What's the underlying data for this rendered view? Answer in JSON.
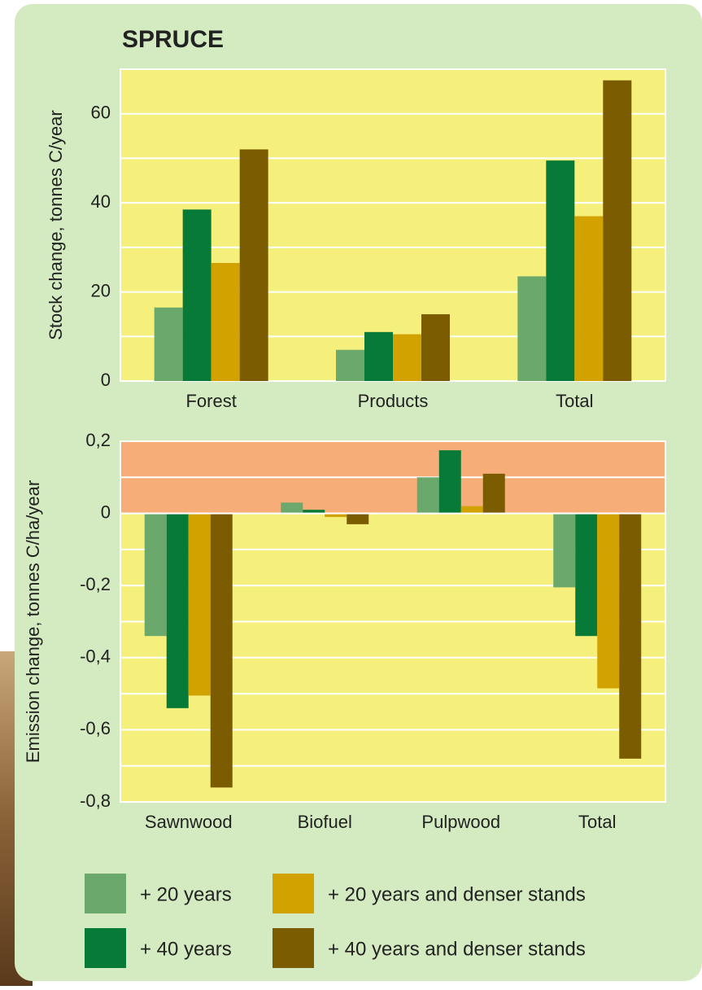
{
  "chart_data": [
    {
      "type": "bar",
      "title": "SPRUCE",
      "y_label": "Stock change, tonnes C/year",
      "categories": [
        "Forest",
        "Products",
        "Total"
      ],
      "series": [
        {
          "name": "+ 20 years",
          "color": "#6aa86c",
          "values": [
            16.5,
            7,
            23.5
          ]
        },
        {
          "name": "+ 40 years",
          "color": "#077a38",
          "values": [
            38.5,
            11,
            49.5
          ]
        },
        {
          "name": "+ 20 years and denser stands",
          "color": "#d2a200",
          "values": [
            26.5,
            10.5,
            37
          ]
        },
        {
          "name": "+ 40 years and denser stands",
          "color": "#7b5c00",
          "values": [
            52,
            15,
            67.5
          ]
        }
      ],
      "ylim": [
        0,
        70
      ],
      "yticks": [
        0,
        20,
        40,
        60
      ],
      "minor_yticks": [
        10,
        30,
        50
      ],
      "grid": true,
      "plot_color": "#f5ef7c"
    },
    {
      "type": "bar",
      "y_label": "Emission change, tonnes C/ha/year",
      "categories": [
        "Sawnwood",
        "Biofuel",
        "Pulpwood",
        "Total"
      ],
      "series": [
        {
          "color": "#6aa86c",
          "values": [
            -0.34,
            0.03,
            0.1,
            -0.205
          ]
        },
        {
          "color": "#077a38",
          "values": [
            -0.54,
            0.01,
            0.175,
            -0.34
          ]
        },
        {
          "color": "#d2a200",
          "values": [
            -0.505,
            -0.01,
            0.02,
            -0.485
          ]
        },
        {
          "color": "#7b5c00",
          "values": [
            -0.76,
            -0.03,
            0.11,
            -0.68
          ]
        }
      ],
      "ylim": [
        -0.8,
        0.2
      ],
      "yticks": [
        {
          "value": 0.2,
          "label": "0,2"
        },
        0,
        {
          "value": -0.2,
          "label": "-0,2"
        },
        {
          "value": -0.4,
          "label": "-0,4"
        },
        {
          "value": -0.6,
          "label": "-0,6"
        },
        {
          "value": -0.8,
          "label": "-0,8"
        }
      ],
      "minor_yticks": [
        0.1,
        -0.1,
        -0.3,
        -0.5,
        -0.7
      ],
      "grid": true,
      "plot_color": "#f5ef7c",
      "positive_band_color": "#f6ad78"
    }
  ]
}
